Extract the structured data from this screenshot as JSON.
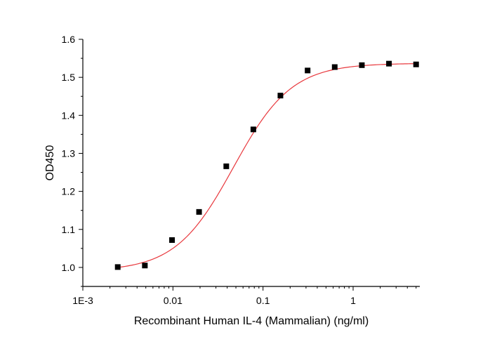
{
  "chart_data": {
    "type": "scatter",
    "xlabel": "Recombinant Human IL-4  (Mammalian) (ng/ml)",
    "ylabel": "OD450",
    "x_scale": "log",
    "xlim": [
      0.001,
      5.5
    ],
    "ylim": [
      0.95,
      1.6
    ],
    "x_ticks": [
      {
        "value": 0.001,
        "label": "1E-3"
      },
      {
        "value": 0.01,
        "label": "0.01"
      },
      {
        "value": 0.1,
        "label": "0.1"
      },
      {
        "value": 1,
        "label": "1"
      }
    ],
    "y_ticks": [
      {
        "value": 1.0,
        "label": "1.0"
      },
      {
        "value": 1.1,
        "label": "1.1"
      },
      {
        "value": 1.2,
        "label": "1.2"
      },
      {
        "value": 1.3,
        "label": "1.3"
      },
      {
        "value": 1.4,
        "label": "1.4"
      },
      {
        "value": 1.5,
        "label": "1.5"
      },
      {
        "value": 1.6,
        "label": "1.6"
      }
    ],
    "grid": false,
    "series": [
      {
        "marker": "square",
        "color": "#000000",
        "x": [
          0.00244,
          0.00488,
          0.00977,
          0.0195,
          0.0391,
          0.0781,
          0.156,
          0.3125,
          0.625,
          1.25,
          2.5,
          5.0
        ],
        "y": [
          1.001,
          1.005,
          1.072,
          1.146,
          1.266,
          1.363,
          1.452,
          1.518,
          1.527,
          1.532,
          1.536,
          1.534
        ]
      }
    ],
    "fit_curve": {
      "model": "4PL",
      "color": "#e8383d",
      "bottom": 0.99,
      "top": 1.537,
      "ec50": 0.047,
      "hill": 1.35
    }
  }
}
